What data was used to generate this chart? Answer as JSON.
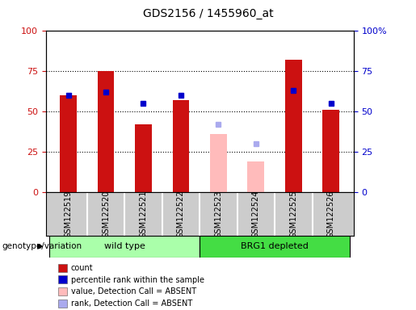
{
  "title": "GDS2156 / 1455960_at",
  "samples": [
    "GSM122519",
    "GSM122520",
    "GSM122521",
    "GSM122522",
    "GSM122523",
    "GSM122524",
    "GSM122525",
    "GSM122526"
  ],
  "count_values": [
    60,
    75,
    42,
    57,
    null,
    null,
    82,
    51
  ],
  "count_absent": [
    null,
    null,
    null,
    null,
    36,
    19,
    null,
    null
  ],
  "rank_values": [
    60,
    62,
    55,
    60,
    null,
    null,
    63,
    55
  ],
  "rank_absent": [
    null,
    null,
    null,
    null,
    42,
    30,
    null,
    null
  ],
  "group_labels": [
    "wild type",
    "BRG1 depleted"
  ],
  "bar_width": 0.45,
  "ylim": [
    0,
    100
  ],
  "yticks": [
    0,
    25,
    50,
    75,
    100
  ],
  "count_color": "#cc1111",
  "count_absent_color": "#ffbbbb",
  "rank_color": "#0000cc",
  "rank_absent_color": "#aaaaee",
  "bg_color": "#cccccc",
  "wt_color": "#aaffaa",
  "brg1_color": "#44dd44",
  "genotype_label": "genotype/variation",
  "legend_items": [
    {
      "label": "count",
      "color": "#cc1111"
    },
    {
      "label": "percentile rank within the sample",
      "color": "#0000cc"
    },
    {
      "label": "value, Detection Call = ABSENT",
      "color": "#ffbbbb"
    },
    {
      "label": "rank, Detection Call = ABSENT",
      "color": "#aaaaee"
    }
  ]
}
